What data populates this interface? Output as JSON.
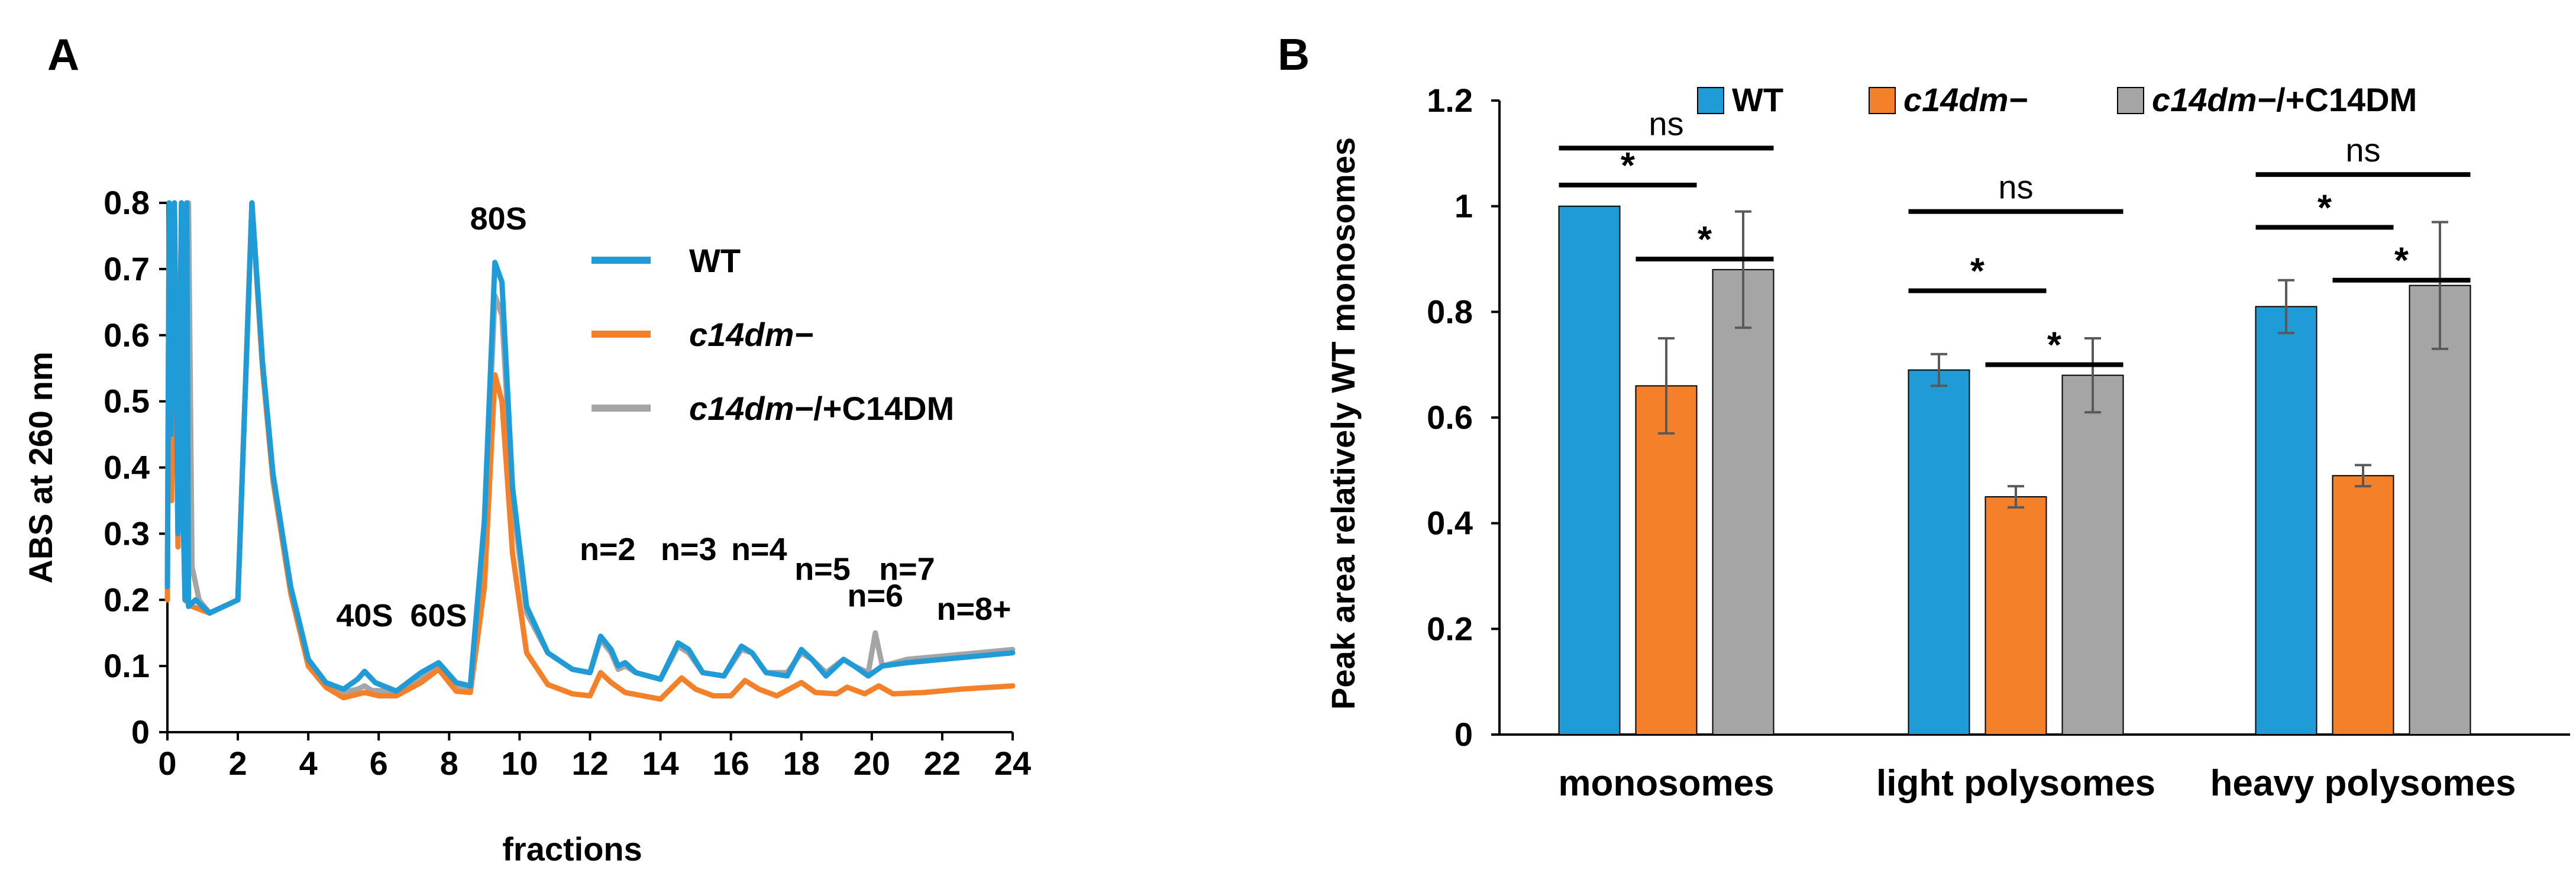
{
  "figure": {
    "panel_a_label": "A",
    "panel_b_label": "B"
  },
  "colors": {
    "wt": "#1f9bd7",
    "mutant": "#f5802a",
    "rescue": "#a5a5a5",
    "axis": "#000000",
    "errorbar": "#595959"
  },
  "chart_data": [
    {
      "type": "line",
      "panel": "A",
      "title": "",
      "xlabel": "fractions",
      "ylabel": "ABS at 260 nm",
      "xlim": [
        0,
        24
      ],
      "ylim": [
        0,
        0.8
      ],
      "x_ticks": [
        "0",
        "2",
        "4",
        "6",
        "8",
        "10",
        "12",
        "14",
        "16",
        "18",
        "20",
        "22",
        "24"
      ],
      "y_ticks": [
        "0",
        "0.1",
        "0.2",
        "0.3",
        "0.4",
        "0.5",
        "0.6",
        "0.7",
        "0.8"
      ],
      "legend": [
        {
          "key": "wt",
          "label": "WT",
          "italic": false
        },
        {
          "key": "mutant",
          "label": "c14dm−",
          "italic": true
        },
        {
          "key": "rescue",
          "label_italic": "c14dm−",
          "label_suffix": "/+C14DM",
          "italic": true
        }
      ],
      "annotations": [
        {
          "text": "80S",
          "x": 9.4,
          "y": 0.76
        },
        {
          "text": "40S",
          "x": 5.6,
          "y": 0.16
        },
        {
          "text": "60S",
          "x": 7.7,
          "y": 0.16
        },
        {
          "text": "n=2",
          "x": 12.5,
          "y": 0.26
        },
        {
          "text": "n=3",
          "x": 14.8,
          "y": 0.26
        },
        {
          "text": "n=4",
          "x": 16.8,
          "y": 0.26
        },
        {
          "text": "n=5",
          "x": 18.6,
          "y": 0.23
        },
        {
          "text": "n=6",
          "x": 20.1,
          "y": 0.19
        },
        {
          "text": "n=7",
          "x": 21.0,
          "y": 0.23
        },
        {
          "text": "n=8+",
          "x": 22.9,
          "y": 0.17
        }
      ],
      "series": [
        {
          "key": "rescue",
          "name": "c14dm−/+C14DM",
          "points": [
            [
              0,
              0.24
            ],
            [
              0.05,
              0.8
            ],
            [
              0.1,
              0.5
            ],
            [
              0.2,
              0.8
            ],
            [
              0.3,
              0.35
            ],
            [
              0.4,
              0.8
            ],
            [
              0.5,
              0.25
            ],
            [
              0.6,
              0.8
            ],
            [
              0.7,
              0.25
            ],
            [
              0.9,
              0.2
            ],
            [
              1.2,
              0.18
            ],
            [
              2.0,
              0.2
            ],
            [
              2.4,
              0.8
            ],
            [
              2.7,
              0.55
            ],
            [
              3.0,
              0.38
            ],
            [
              3.5,
              0.22
            ],
            [
              4.0,
              0.11
            ],
            [
              4.5,
              0.075
            ],
            [
              5.0,
              0.06
            ],
            [
              5.4,
              0.065
            ],
            [
              5.6,
              0.07
            ],
            [
              5.8,
              0.063
            ],
            [
              6.5,
              0.062
            ],
            [
              7.2,
              0.08
            ],
            [
              7.7,
              0.1
            ],
            [
              8.2,
              0.07
            ],
            [
              8.6,
              0.068
            ],
            [
              9.0,
              0.3
            ],
            [
              9.3,
              0.66
            ],
            [
              9.5,
              0.63
            ],
            [
              9.8,
              0.35
            ],
            [
              10.2,
              0.18
            ],
            [
              10.8,
              0.12
            ],
            [
              11.5,
              0.095
            ],
            [
              12.0,
              0.09
            ],
            [
              12.3,
              0.14
            ],
            [
              12.6,
              0.12
            ],
            [
              12.8,
              0.095
            ],
            [
              13.0,
              0.1
            ],
            [
              13.3,
              0.09
            ],
            [
              14.0,
              0.08
            ],
            [
              14.5,
              0.13
            ],
            [
              14.8,
              0.12
            ],
            [
              15.2,
              0.09
            ],
            [
              15.8,
              0.085
            ],
            [
              16.3,
              0.125
            ],
            [
              16.6,
              0.12
            ],
            [
              17.0,
              0.09
            ],
            [
              17.6,
              0.09
            ],
            [
              18.0,
              0.12
            ],
            [
              18.3,
              0.11
            ],
            [
              18.7,
              0.09
            ],
            [
              19.2,
              0.11
            ],
            [
              19.5,
              0.1
            ],
            [
              19.9,
              0.09
            ],
            [
              20.1,
              0.15
            ],
            [
              20.3,
              0.1
            ],
            [
              21.0,
              0.11
            ],
            [
              22.0,
              0.115
            ],
            [
              23.0,
              0.12
            ],
            [
              24.0,
              0.125
            ]
          ]
        },
        {
          "key": "mutant",
          "name": "c14dm−",
          "points": [
            [
              0,
              0.2
            ],
            [
              0.05,
              0.8
            ],
            [
              0.12,
              0.35
            ],
            [
              0.2,
              0.8
            ],
            [
              0.3,
              0.28
            ],
            [
              0.4,
              0.8
            ],
            [
              0.5,
              0.2
            ],
            [
              0.7,
              0.19
            ],
            [
              1.2,
              0.18
            ],
            [
              2.0,
              0.2
            ],
            [
              2.4,
              0.8
            ],
            [
              2.7,
              0.55
            ],
            [
              3.0,
              0.38
            ],
            [
              3.5,
              0.21
            ],
            [
              4.0,
              0.1
            ],
            [
              4.5,
              0.068
            ],
            [
              5.0,
              0.052
            ],
            [
              5.6,
              0.06
            ],
            [
              6.0,
              0.055
            ],
            [
              6.5,
              0.055
            ],
            [
              7.2,
              0.075
            ],
            [
              7.7,
              0.095
            ],
            [
              8.2,
              0.062
            ],
            [
              8.6,
              0.06
            ],
            [
              9.0,
              0.22
            ],
            [
              9.3,
              0.54
            ],
            [
              9.5,
              0.5
            ],
            [
              9.8,
              0.27
            ],
            [
              10.2,
              0.12
            ],
            [
              10.8,
              0.072
            ],
            [
              11.5,
              0.058
            ],
            [
              12.0,
              0.055
            ],
            [
              12.3,
              0.09
            ],
            [
              12.6,
              0.075
            ],
            [
              13.0,
              0.06
            ],
            [
              13.5,
              0.055
            ],
            [
              14.0,
              0.05
            ],
            [
              14.6,
              0.082
            ],
            [
              15.0,
              0.065
            ],
            [
              15.5,
              0.055
            ],
            [
              16.0,
              0.055
            ],
            [
              16.4,
              0.078
            ],
            [
              16.8,
              0.065
            ],
            [
              17.3,
              0.055
            ],
            [
              18.0,
              0.075
            ],
            [
              18.4,
              0.06
            ],
            [
              19.0,
              0.058
            ],
            [
              19.3,
              0.068
            ],
            [
              19.8,
              0.058
            ],
            [
              20.2,
              0.07
            ],
            [
              20.6,
              0.058
            ],
            [
              21.5,
              0.06
            ],
            [
              22.5,
              0.065
            ],
            [
              24.0,
              0.07
            ]
          ]
        },
        {
          "key": "wt",
          "name": "WT",
          "points": [
            [
              0,
              0.22
            ],
            [
              0.05,
              0.8
            ],
            [
              0.1,
              0.45
            ],
            [
              0.2,
              0.8
            ],
            [
              0.3,
              0.3
            ],
            [
              0.4,
              0.8
            ],
            [
              0.45,
              0.32
            ],
            [
              0.5,
              0.2
            ],
            [
              0.55,
              0.8
            ],
            [
              0.6,
              0.19
            ],
            [
              0.8,
              0.2
            ],
            [
              1.2,
              0.18
            ],
            [
              2.0,
              0.2
            ],
            [
              2.4,
              0.8
            ],
            [
              2.7,
              0.56
            ],
            [
              3.0,
              0.39
            ],
            [
              3.5,
              0.22
            ],
            [
              4.0,
              0.11
            ],
            [
              4.5,
              0.075
            ],
            [
              5.0,
              0.065
            ],
            [
              5.4,
              0.08
            ],
            [
              5.6,
              0.092
            ],
            [
              5.9,
              0.075
            ],
            [
              6.5,
              0.062
            ],
            [
              7.2,
              0.09
            ],
            [
              7.7,
              0.105
            ],
            [
              8.2,
              0.075
            ],
            [
              8.6,
              0.07
            ],
            [
              9.0,
              0.32
            ],
            [
              9.3,
              0.71
            ],
            [
              9.5,
              0.68
            ],
            [
              9.8,
              0.37
            ],
            [
              10.2,
              0.19
            ],
            [
              10.8,
              0.12
            ],
            [
              11.5,
              0.095
            ],
            [
              12.0,
              0.09
            ],
            [
              12.3,
              0.145
            ],
            [
              12.6,
              0.125
            ],
            [
              12.8,
              0.1
            ],
            [
              13.0,
              0.105
            ],
            [
              13.3,
              0.09
            ],
            [
              14.0,
              0.08
            ],
            [
              14.5,
              0.135
            ],
            [
              14.8,
              0.125
            ],
            [
              15.2,
              0.09
            ],
            [
              15.8,
              0.085
            ],
            [
              16.3,
              0.13
            ],
            [
              16.6,
              0.12
            ],
            [
              17.0,
              0.09
            ],
            [
              17.6,
              0.085
            ],
            [
              18.0,
              0.125
            ],
            [
              18.3,
              0.11
            ],
            [
              18.7,
              0.085
            ],
            [
              19.2,
              0.11
            ],
            [
              19.5,
              0.1
            ],
            [
              19.9,
              0.085
            ],
            [
              20.3,
              0.1
            ],
            [
              21.0,
              0.105
            ],
            [
              22.0,
              0.11
            ],
            [
              23.0,
              0.115
            ],
            [
              24.0,
              0.12
            ]
          ]
        }
      ]
    },
    {
      "type": "bar",
      "panel": "B",
      "title": "",
      "xlabel": "",
      "ylabel": "Peak area relatively WT monosomes",
      "ylim": [
        0,
        1.2
      ],
      "y_ticks": [
        "0",
        "0.2",
        "0.4",
        "0.6",
        "0.8",
        "1",
        "1.2"
      ],
      "categories": [
        "monosomes",
        "light polysomes",
        "heavy polysomes"
      ],
      "legend": [
        {
          "key": "wt",
          "label": "WT",
          "italic": false
        },
        {
          "key": "mutant",
          "label": "c14dm−",
          "italic": true
        },
        {
          "key": "rescue",
          "label_italic": "c14dm−",
          "label_suffix": "/+C14DM",
          "italic": true
        }
      ],
      "series": [
        {
          "key": "wt",
          "name": "WT",
          "values": [
            1.0,
            0.69,
            0.81
          ],
          "errors": [
            0.0,
            0.03,
            0.05
          ]
        },
        {
          "key": "mutant",
          "name": "c14dm−",
          "values": [
            0.66,
            0.45,
            0.49
          ],
          "errors": [
            0.09,
            0.02,
            0.02
          ]
        },
        {
          "key": "rescue",
          "name": "c14dm−/+C14DM",
          "values": [
            0.88,
            0.68,
            0.85
          ],
          "errors": [
            0.11,
            0.07,
            0.12
          ]
        }
      ],
      "significance": [
        {
          "category": 0,
          "from": "wt",
          "to": "rescue",
          "label": "ns",
          "y": 1.11
        },
        {
          "category": 0,
          "from": "wt",
          "to": "mutant",
          "label": "*",
          "y": 1.04
        },
        {
          "category": 0,
          "from": "mutant",
          "to": "rescue",
          "label": "*",
          "y": 0.9
        },
        {
          "category": 1,
          "from": "wt",
          "to": "rescue",
          "label": "ns",
          "y": 0.99
        },
        {
          "category": 1,
          "from": "wt",
          "to": "mutant",
          "label": "*",
          "y": 0.84
        },
        {
          "category": 1,
          "from": "mutant",
          "to": "rescue",
          "label": "*",
          "y": 0.7
        },
        {
          "category": 2,
          "from": "wt",
          "to": "rescue",
          "label": "ns",
          "y": 1.06
        },
        {
          "category": 2,
          "from": "wt",
          "to": "mutant",
          "label": "*",
          "y": 0.96
        },
        {
          "category": 2,
          "from": "mutant",
          "to": "rescue",
          "label": "*",
          "y": 0.86
        }
      ]
    }
  ]
}
